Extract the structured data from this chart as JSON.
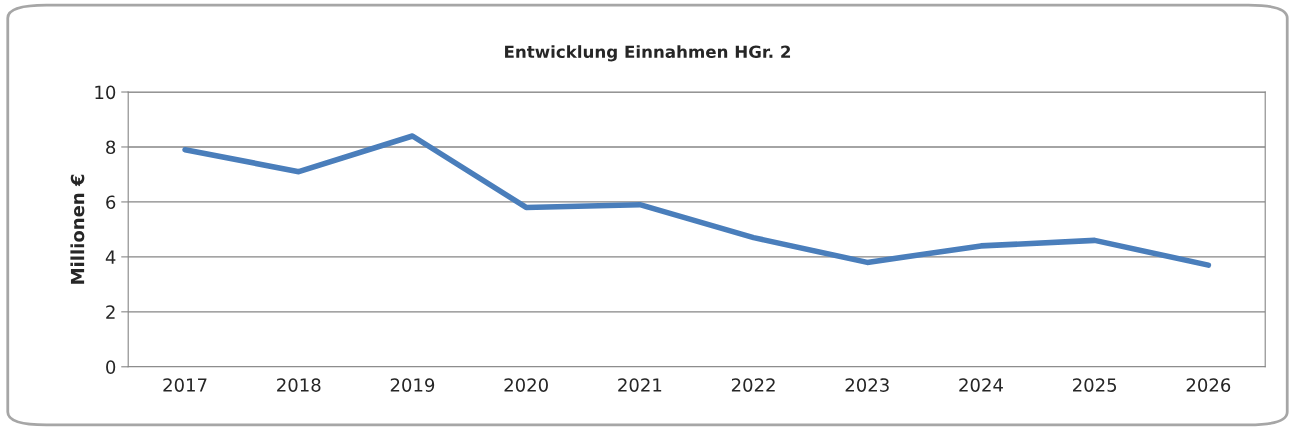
{
  "chart_data": {
    "type": "line",
    "title": "Entwicklung Einnahmen HGr. 2",
    "ylabel": "Millionen €",
    "categories": [
      "2017",
      "2018",
      "2019",
      "2020",
      "2021",
      "2022",
      "2023",
      "2024",
      "2025",
      "2026"
    ],
    "series": [
      {
        "color": "#4a7ebb",
        "values": [
          7.9,
          7.1,
          8.4,
          5.8,
          5.9,
          4.7,
          3.8,
          4.4,
          4.6,
          3.7
        ]
      }
    ],
    "ylim": [
      0,
      10
    ],
    "yticks": [
      0,
      2,
      4,
      6,
      8,
      10
    ],
    "grid": "y",
    "marker": "none",
    "line_style": "solid"
  }
}
